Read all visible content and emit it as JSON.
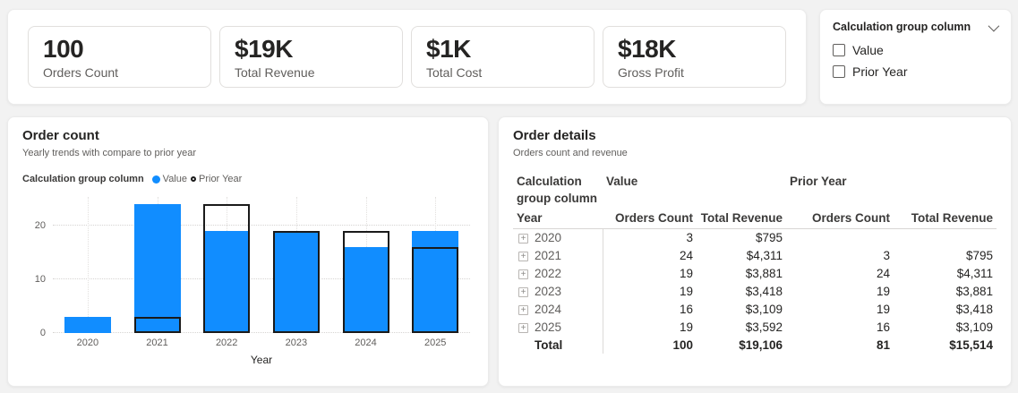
{
  "colors": {
    "accent_blue": "#118DFF",
    "outline_black": "#1a1a1a",
    "text_dark": "#252423",
    "text_gray": "#605E5C"
  },
  "kpis": [
    {
      "value": "100",
      "label": "Orders Count"
    },
    {
      "value": "$19K",
      "label": "Total Revenue"
    },
    {
      "value": "$1K",
      "label": "Total Cost"
    },
    {
      "value": "$18K",
      "label": "Gross Profit"
    }
  ],
  "slicer": {
    "title": "Calculation group column",
    "options": [
      {
        "label": "Value",
        "checked": false
      },
      {
        "label": "Prior Year",
        "checked": false
      }
    ]
  },
  "chart": {
    "title": "Order count",
    "subtitle": "Yearly trends with compare to prior year",
    "legend_title": "Calculation group column",
    "legend_items": [
      {
        "label": "Value",
        "marker": "filled-blue-circle"
      },
      {
        "label": "Prior Year",
        "marker": "black-ring"
      }
    ]
  },
  "chart_data": {
    "type": "bar",
    "title": "Order count",
    "categories": [
      "2020",
      "2021",
      "2022",
      "2023",
      "2024",
      "2025"
    ],
    "series": [
      {
        "name": "Value",
        "values": [
          3,
          24,
          19,
          19,
          16,
          19
        ]
      },
      {
        "name": "Prior Year",
        "values": [
          null,
          3,
          24,
          19,
          19,
          16
        ]
      }
    ],
    "xlabel": "Year",
    "ylabel": "",
    "ylim": [
      0,
      25
    ],
    "yticks": [
      "0",
      "10",
      "20"
    ],
    "grid": true,
    "legend_position": "top"
  },
  "table": {
    "title": "Order details",
    "subtitle": "Orders count and revenue",
    "group_headers": {
      "row_group": "Calculation group column",
      "value": "Value",
      "prior_year": "Prior Year"
    },
    "col_headers": {
      "year": "Year",
      "oc1": "Orders Count",
      "tr1": "Total Revenue",
      "oc2": "Orders Count",
      "tr2": "Total Revenue"
    },
    "rows": [
      {
        "year": "2020",
        "cells": [
          "3",
          "$795",
          "",
          ""
        ]
      },
      {
        "year": "2021",
        "cells": [
          "24",
          "$4,311",
          "3",
          "$795"
        ]
      },
      {
        "year": "2022",
        "cells": [
          "19",
          "$3,881",
          "24",
          "$4,311"
        ]
      },
      {
        "year": "2023",
        "cells": [
          "19",
          "$3,418",
          "19",
          "$3,881"
        ]
      },
      {
        "year": "2024",
        "cells": [
          "16",
          "$3,109",
          "19",
          "$3,418"
        ]
      },
      {
        "year": "2025",
        "cells": [
          "19",
          "$3,592",
          "16",
          "$3,109"
        ]
      }
    ],
    "total": {
      "label": "Total",
      "cells": [
        "100",
        "$19,106",
        "81",
        "$15,514"
      ]
    }
  }
}
